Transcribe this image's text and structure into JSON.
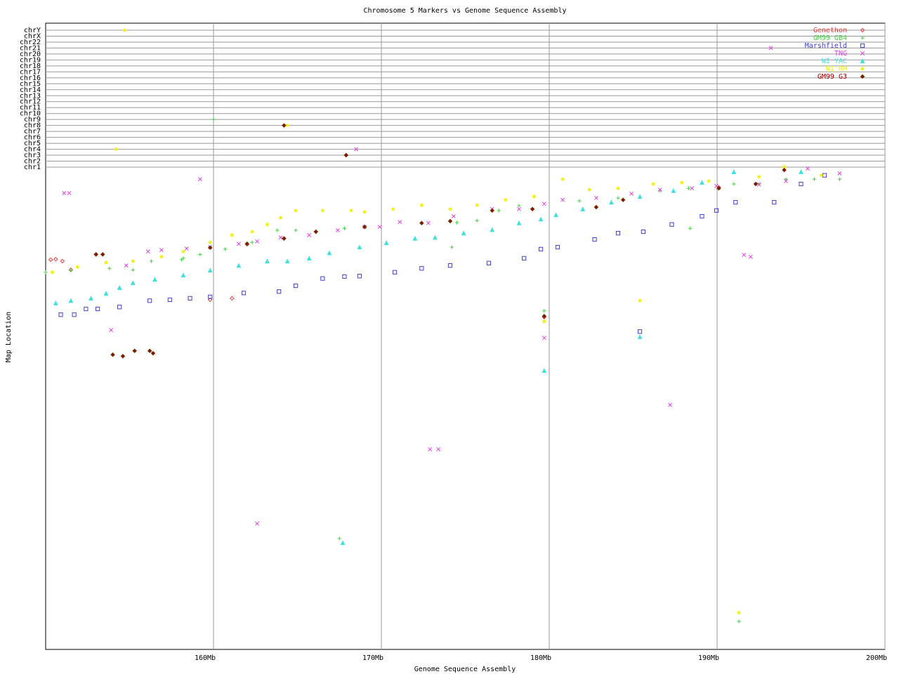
{
  "chart_data": {
    "type": "scatter",
    "title": "Chromosome 5 Markers vs Genome Sequence Assembly",
    "x_label": "Genome Sequence Assembly",
    "y_label": "Map Location",
    "xlim": [
      150,
      200
    ],
    "xticks": [
      {
        "value": 160,
        "label": "160Mb"
      },
      {
        "value": 170,
        "label": "170Mb"
      },
      {
        "value": 180,
        "label": "180Mb"
      },
      {
        "value": 190,
        "label": "190Mb"
      },
      {
        "value": 200,
        "label": "200Mb"
      }
    ],
    "ylim": [
      0,
      100
    ],
    "grid": true,
    "legend": "upper right",
    "chromosomes": [
      "chr1",
      "chr2",
      "chr3",
      "chr4",
      "chr5",
      "chr6",
      "chr7",
      "chr8",
      "chr9",
      "chr10",
      "chr11",
      "chr12",
      "chr13",
      "chr14",
      "chr15",
      "chr16",
      "chr17",
      "chr18",
      "chr19",
      "chr20",
      "chr21",
      "chr22",
      "chrX",
      "chrY"
    ],
    "series": [
      {
        "name": "Genethon",
        "color": "#e04040",
        "marker": "diamond",
        "x": [
          150.3,
          150.6,
          151.0,
          151.5,
          153.0,
          159.8,
          161.1,
          162.0,
          164.2,
          179.7,
          190.1
        ],
        "values": [
          80.8,
          80.9,
          80.5,
          78.7,
          81.9,
          72.5,
          72.8,
          84.0,
          85.2,
          68.9,
          95.8
        ],
        "chrom_x": [
          167.9
        ],
        "chrom": [
          "chr3"
        ]
      },
      {
        "name": "GM99 GB4",
        "color": "#40d040",
        "marker": "plus",
        "x": [
          150.0,
          151.5,
          153.8,
          155.2,
          156.3,
          158.2,
          159.2,
          160.7,
          162.3,
          163.8,
          164.9,
          166.1,
          167.8,
          169.0,
          172.4,
          174.5,
          175.7,
          177.0,
          178.2,
          181.8,
          184.1,
          186.6,
          188.3,
          191.0,
          192.5,
          194.1,
          195.8,
          197.3,
          174.2,
          188.4,
          179.7,
          167.5,
          191.3,
          158.1
        ],
        "values": [
          78.2,
          78.6,
          79.0,
          78.7,
          80.5,
          81.1,
          81.9,
          83.0,
          84.4,
          86.9,
          86.9,
          86.6,
          87.3,
          87.8,
          88.4,
          88.5,
          88.9,
          91.0,
          92.0,
          93.0,
          93.6,
          95.1,
          95.6,
          96.5,
          96.5,
          97.5,
          97.5,
          97.5,
          83.4,
          87.3,
          70.2,
          23.0,
          5.8,
          80.8
        ],
        "chrom_x": [
          160.0
        ],
        "chrom": [
          "chr9"
        ]
      },
      {
        "name": "Marshfield",
        "color": "#4040d0",
        "marker": "square",
        "x": [
          150.9,
          151.7,
          152.4,
          153.1,
          154.4,
          156.2,
          157.4,
          158.6,
          159.8,
          161.8,
          163.9,
          164.9,
          166.5,
          167.8,
          168.7,
          170.8,
          172.4,
          174.1,
          176.4,
          178.5,
          179.5,
          180.5,
          182.7,
          184.1,
          185.6,
          187.3,
          189.1,
          189.96,
          191.1,
          193.4,
          195.0,
          196.4,
          185.4
        ],
        "values": [
          69.4,
          69.4,
          70.6,
          70.6,
          71.0,
          72.3,
          72.5,
          72.8,
          73.1,
          73.9,
          74.2,
          75.4,
          76.9,
          77.3,
          77.4,
          78.2,
          79.0,
          79.6,
          80.1,
          81.1,
          83.0,
          83.4,
          85.0,
          86.3,
          86.6,
          88.1,
          89.8,
          91.0,
          92.7,
          92.7,
          96.5,
          98.3,
          65.9
        ],
        "chrom_x": [],
        "chrom": []
      },
      {
        "name": "TNG",
        "color": "#e040e0",
        "marker": "x",
        "x": [
          151.1,
          151.4,
          153.9,
          154.8,
          156.1,
          156.9,
          158.4,
          159.2,
          159.8,
          161.5,
          162.6,
          162.6,
          164.0,
          165.7,
          167.4,
          169.0,
          169.9,
          171.1,
          172.8,
          172.9,
          173.4,
          174.3,
          176.6,
          178.2,
          179.7,
          179.7,
          180.8,
          182.8,
          184.9,
          186.6,
          187.2,
          188.5,
          189.96,
          191.6,
          192.0,
          192.5,
          194.1,
          195.4,
          197.3
        ],
        "values": [
          94.6,
          94.6,
          66.2,
          79.6,
          82.5,
          82.8,
          83.1,
          97.5,
          83.4,
          84.1,
          84.6,
          26.1,
          85.4,
          85.9,
          86.9,
          87.6,
          87.6,
          88.6,
          88.4,
          41.5,
          41.5,
          89.8,
          91.3,
          91.3,
          92.4,
          64.6,
          93.2,
          93.6,
          94.5,
          95.3,
          50.7,
          95.6,
          96.1,
          81.8,
          81.4,
          96.4,
          97.1,
          99.7,
          98.7
        ],
        "chrom_x": [
          193.2,
          168.5
        ],
        "chrom": [
          "chr21",
          "chr4"
        ]
      },
      {
        "name": "WI YAC",
        "color": "#40e0e0",
        "marker": "triangle",
        "x": [
          150.6,
          151.5,
          152.7,
          153.6,
          154.4,
          155.2,
          156.5,
          158.2,
          159.8,
          161.5,
          163.2,
          164.4,
          165.7,
          166.9,
          168.7,
          170.3,
          172.0,
          173.2,
          174.9,
          176.6,
          178.2,
          179.5,
          180.4,
          182.0,
          183.7,
          185.4,
          187.4,
          189.1,
          191.0,
          195.0,
          167.7,
          179.7,
          185.4
        ],
        "values": [
          71.8,
          72.3,
          72.8,
          73.8,
          75.0,
          76.0,
          76.7,
          77.6,
          78.6,
          79.6,
          80.5,
          80.5,
          81.1,
          82.2,
          83.4,
          84.3,
          85.2,
          85.4,
          86.3,
          87.0,
          88.4,
          89.2,
          90.1,
          91.3,
          92.7,
          93.9,
          95.1,
          96.8,
          99.0,
          99.0,
          22.1,
          57.8,
          64.8
        ],
        "chrom_x": [],
        "chrom": []
      },
      {
        "name": "WI RH",
        "color": "#f0f000",
        "marker": "star",
        "x": [
          150.4,
          151.9,
          153.6,
          155.2,
          156.9,
          158.2,
          159.8,
          161.1,
          162.3,
          163.2,
          164.0,
          164.9,
          166.5,
          168.2,
          169.0,
          170.7,
          172.4,
          174.1,
          175.7,
          177.4,
          179.1,
          180.8,
          182.4,
          184.1,
          186.2,
          187.9,
          189.5,
          192.5,
          194.0,
          196.2,
          185.4,
          179.7,
          191.3
        ],
        "values": [
          78.2,
          79.3,
          80.2,
          80.5,
          81.4,
          82.5,
          84.4,
          85.9,
          86.6,
          88.1,
          89.5,
          91.0,
          91.0,
          91.0,
          90.7,
          91.3,
          92.1,
          91.3,
          92.1,
          93.2,
          93.9,
          97.5,
          95.3,
          95.6,
          96.5,
          96.8,
          97.1,
          98.0,
          100.0,
          98.3,
          72.3,
          68.0,
          7.6
        ],
        "chrom_x": [
          154.7,
          154.2,
          164.4
        ],
        "chrom": [
          "chrY",
          "chr4",
          "chr8"
        ]
      },
      {
        "name": "GM99 G3",
        "color": "#a00000",
        "marker": "diamond-filled",
        "x": [
          153.0,
          153.4,
          154.0,
          154.6,
          155.3,
          156.2,
          156.4,
          159.8,
          162.0,
          164.2,
          166.1,
          169.0,
          172.4,
          174.1,
          176.6,
          179.0,
          179.7,
          182.8,
          184.4,
          190.1,
          192.3,
          194.0
        ],
        "values": [
          81.9,
          81.9,
          61.1,
          60.8,
          61.9,
          61.9,
          61.4,
          83.3,
          84.1,
          85.2,
          86.6,
          87.6,
          88.4,
          88.8,
          91.0,
          91.3,
          69.1,
          91.7,
          93.2,
          95.6,
          96.5,
          99.4
        ],
        "chrom_x": [
          164.2,
          167.9
        ],
        "chrom": [
          "chr8",
          "chr3"
        ]
      }
    ]
  }
}
